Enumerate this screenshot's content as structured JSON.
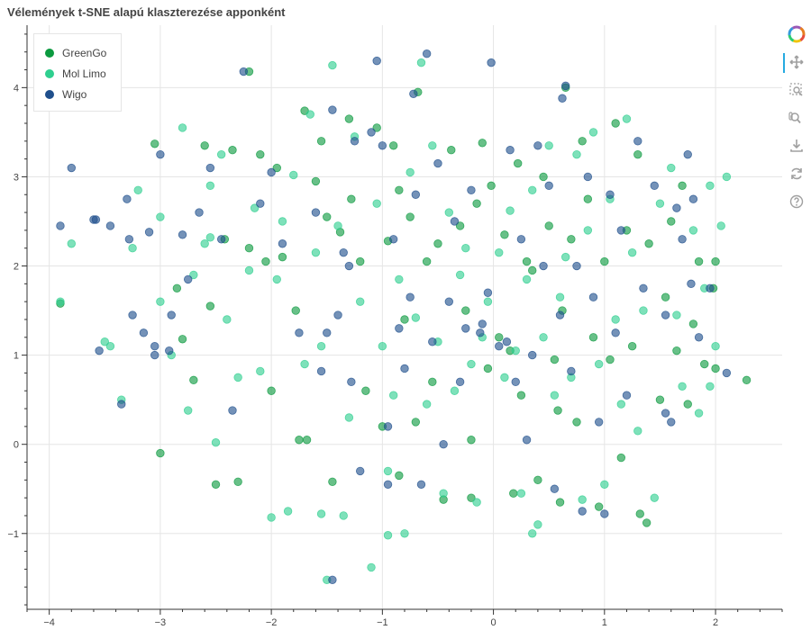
{
  "chart_data": {
    "type": "scatter",
    "title": "Vélemények t-SNE alapú klaszterezése apponként",
    "xlim": [
      -4.2,
      2.6
    ],
    "ylim": [
      -1.85,
      4.7
    ],
    "x_ticks": [
      -4,
      -3,
      -2,
      -1,
      0,
      1,
      2
    ],
    "y_ticks": [
      -1,
      0,
      1,
      2,
      3,
      4
    ],
    "x_tick_labels": [
      "−4",
      "−3",
      "−2",
      "−1",
      "0",
      "1",
      "2"
    ],
    "y_tick_labels": [
      "−1",
      "0",
      "1",
      "2",
      "3",
      "4"
    ],
    "grid": true,
    "legend_position": "top-left",
    "series": [
      {
        "name": "GreenGo",
        "color": "#0b9a3f",
        "points": [
          [
            -3.9,
            1.58
          ],
          [
            -3.05,
            3.37
          ],
          [
            -3.0,
            -0.1
          ],
          [
            -2.85,
            1.75
          ],
          [
            -2.8,
            1.18
          ],
          [
            -2.7,
            0.72
          ],
          [
            -2.6,
            3.35
          ],
          [
            -2.55,
            1.55
          ],
          [
            -2.5,
            -0.45
          ],
          [
            -2.42,
            2.3
          ],
          [
            -2.35,
            3.3
          ],
          [
            -2.2,
            2.2
          ],
          [
            -2.2,
            4.18
          ],
          [
            -2.1,
            3.25
          ],
          [
            -2.05,
            2.05
          ],
          [
            -2.0,
            0.6
          ],
          [
            -1.95,
            3.1
          ],
          [
            -1.9,
            2.1
          ],
          [
            -1.78,
            1.5
          ],
          [
            -1.7,
            3.74
          ],
          [
            -1.68,
            0.05
          ],
          [
            -1.6,
            2.95
          ],
          [
            -1.55,
            3.4
          ],
          [
            -1.5,
            2.55
          ],
          [
            -1.45,
            -0.42
          ],
          [
            -1.38,
            2.38
          ],
          [
            -1.3,
            3.65
          ],
          [
            -1.28,
            2.75
          ],
          [
            -1.2,
            2.05
          ],
          [
            -1.15,
            0.6
          ],
          [
            -1.05,
            3.55
          ],
          [
            -1.0,
            0.2
          ],
          [
            -0.95,
            2.28
          ],
          [
            -0.9,
            3.35
          ],
          [
            -0.85,
            2.85
          ],
          [
            -0.8,
            1.4
          ],
          [
            -0.75,
            2.55
          ],
          [
            -0.7,
            0.25
          ],
          [
            -0.68,
            3.95
          ],
          [
            -0.6,
            2.05
          ],
          [
            -0.55,
            0.7
          ],
          [
            -0.5,
            2.25
          ],
          [
            -0.45,
            -0.62
          ],
          [
            -0.38,
            3.3
          ],
          [
            -0.3,
            2.45
          ],
          [
            -0.25,
            1.5
          ],
          [
            -0.2,
            0.05
          ],
          [
            -0.15,
            2.7
          ],
          [
            -0.1,
            3.38
          ],
          [
            -0.05,
            0.85
          ],
          [
            -0.02,
            2.9
          ],
          [
            0.05,
            1.2
          ],
          [
            0.1,
            2.35
          ],
          [
            0.18,
            -0.55
          ],
          [
            0.22,
            3.15
          ],
          [
            0.25,
            0.55
          ],
          [
            0.3,
            2.05
          ],
          [
            0.35,
            1.95
          ],
          [
            0.4,
            -0.4
          ],
          [
            0.45,
            3.0
          ],
          [
            0.5,
            2.45
          ],
          [
            0.55,
            0.95
          ],
          [
            0.58,
            0.38
          ],
          [
            0.62,
            1.5
          ],
          [
            0.65,
            4.0
          ],
          [
            0.7,
            2.3
          ],
          [
            0.75,
            0.25
          ],
          [
            0.8,
            3.4
          ],
          [
            0.85,
            2.75
          ],
          [
            0.9,
            1.2
          ],
          [
            0.95,
            -0.7
          ],
          [
            1.0,
            2.05
          ],
          [
            1.05,
            0.95
          ],
          [
            1.1,
            3.6
          ],
          [
            1.15,
            -0.15
          ],
          [
            1.2,
            2.4
          ],
          [
            1.25,
            1.1
          ],
          [
            1.3,
            3.25
          ],
          [
            1.32,
            -0.78
          ],
          [
            1.38,
            -0.88
          ],
          [
            1.4,
            2.25
          ],
          [
            1.5,
            0.5
          ],
          [
            1.55,
            1.65
          ],
          [
            1.6,
            2.5
          ],
          [
            1.65,
            1.05
          ],
          [
            1.7,
            2.9
          ],
          [
            1.75,
            0.45
          ],
          [
            1.8,
            1.35
          ],
          [
            1.85,
            2.05
          ],
          [
            1.9,
            0.9
          ],
          [
            1.98,
            1.75
          ],
          [
            2.0,
            2.05
          ],
          [
            2.0,
            0.85
          ],
          [
            2.28,
            0.72
          ],
          [
            -0.85,
            -0.35
          ],
          [
            0.15,
            1.05
          ],
          [
            -1.75,
            0.05
          ],
          [
            -2.3,
            -0.42
          ],
          [
            -0.2,
            -0.6
          ],
          [
            0.6,
            -0.65
          ]
        ]
      },
      {
        "name": "Mol Limo",
        "color": "#2fcf8f",
        "points": [
          [
            -3.9,
            1.6
          ],
          [
            -3.8,
            2.25
          ],
          [
            -3.45,
            1.1
          ],
          [
            -3.35,
            0.5
          ],
          [
            -3.25,
            2.2
          ],
          [
            -3.2,
            2.85
          ],
          [
            -3.0,
            1.6
          ],
          [
            -3.0,
            2.55
          ],
          [
            -2.9,
            1.0
          ],
          [
            -2.8,
            3.55
          ],
          [
            -2.75,
            0.38
          ],
          [
            -2.7,
            1.9
          ],
          [
            -2.6,
            2.25
          ],
          [
            -2.55,
            2.9
          ],
          [
            -2.5,
            0.02
          ],
          [
            -2.45,
            3.25
          ],
          [
            -2.4,
            1.4
          ],
          [
            -2.3,
            0.75
          ],
          [
            -2.2,
            1.95
          ],
          [
            -2.15,
            2.65
          ],
          [
            -2.1,
            0.82
          ],
          [
            -2.0,
            -0.82
          ],
          [
            -1.95,
            1.85
          ],
          [
            -1.9,
            2.5
          ],
          [
            -1.85,
            -0.75
          ],
          [
            -1.8,
            3.02
          ],
          [
            -1.7,
            0.9
          ],
          [
            -1.65,
            3.7
          ],
          [
            -1.6,
            2.15
          ],
          [
            -1.55,
            1.1
          ],
          [
            -1.5,
            -1.52
          ],
          [
            -1.45,
            4.25
          ],
          [
            -1.4,
            2.45
          ],
          [
            -1.35,
            -0.8
          ],
          [
            -1.3,
            0.3
          ],
          [
            -1.25,
            3.45
          ],
          [
            -1.2,
            1.6
          ],
          [
            -1.1,
            -1.38
          ],
          [
            -1.05,
            2.7
          ],
          [
            -1.0,
            1.1
          ],
          [
            -0.95,
            -0.3
          ],
          [
            -0.9,
            0.55
          ],
          [
            -0.85,
            1.85
          ],
          [
            -0.8,
            -1.0
          ],
          [
            -0.75,
            3.05
          ],
          [
            -0.7,
            1.42
          ],
          [
            -0.65,
            4.28
          ],
          [
            -0.6,
            0.45
          ],
          [
            -0.55,
            3.35
          ],
          [
            -0.5,
            1.15
          ],
          [
            -0.45,
            -0.55
          ],
          [
            -0.4,
            2.6
          ],
          [
            -0.35,
            0.6
          ],
          [
            -0.3,
            1.9
          ],
          [
            -0.25,
            2.2
          ],
          [
            -0.2,
            0.9
          ],
          [
            -0.15,
            -0.65
          ],
          [
            -0.1,
            1.2
          ],
          [
            -0.05,
            1.6
          ],
          [
            0.05,
            2.15
          ],
          [
            0.1,
            0.75
          ],
          [
            0.15,
            2.62
          ],
          [
            0.2,
            1.05
          ],
          [
            0.25,
            -0.55
          ],
          [
            0.3,
            1.85
          ],
          [
            0.35,
            2.85
          ],
          [
            0.4,
            -0.9
          ],
          [
            0.45,
            1.2
          ],
          [
            0.5,
            3.35
          ],
          [
            0.55,
            0.55
          ],
          [
            0.6,
            1.65
          ],
          [
            0.65,
            2.1
          ],
          [
            0.7,
            0.75
          ],
          [
            0.75,
            3.25
          ],
          [
            0.8,
            -0.62
          ],
          [
            0.85,
            2.4
          ],
          [
            0.9,
            3.5
          ],
          [
            0.95,
            0.9
          ],
          [
            1.0,
            -0.45
          ],
          [
            1.05,
            2.75
          ],
          [
            1.1,
            1.4
          ],
          [
            1.15,
            0.45
          ],
          [
            1.2,
            3.65
          ],
          [
            1.25,
            2.15
          ],
          [
            1.3,
            0.15
          ],
          [
            1.35,
            1.5
          ],
          [
            1.45,
            -0.6
          ],
          [
            1.5,
            2.7
          ],
          [
            1.6,
            3.1
          ],
          [
            1.65,
            1.45
          ],
          [
            1.7,
            0.65
          ],
          [
            1.8,
            2.4
          ],
          [
            1.85,
            0.35
          ],
          [
            1.9,
            1.75
          ],
          [
            1.95,
            2.9
          ],
          [
            2.0,
            1.1
          ],
          [
            2.05,
            2.45
          ],
          [
            2.1,
            3.0
          ],
          [
            1.95,
            0.65
          ],
          [
            -1.55,
            -0.78
          ],
          [
            -0.95,
            -1.02
          ],
          [
            0.35,
            -1.0
          ],
          [
            -2.55,
            2.32
          ],
          [
            -3.5,
            1.15
          ]
        ]
      },
      {
        "name": "Wigo",
        "color": "#1f4f8c",
        "points": [
          [
            -3.9,
            2.45
          ],
          [
            -3.8,
            3.1
          ],
          [
            -3.6,
            2.52
          ],
          [
            -3.55,
            1.05
          ],
          [
            -3.45,
            2.45
          ],
          [
            -3.35,
            0.45
          ],
          [
            -3.3,
            2.75
          ],
          [
            -3.28,
            2.3
          ],
          [
            -3.25,
            1.45
          ],
          [
            -3.15,
            1.25
          ],
          [
            -3.1,
            2.38
          ],
          [
            -3.05,
            1.0
          ],
          [
            -3.0,
            3.25
          ],
          [
            -2.9,
            1.45
          ],
          [
            -2.8,
            2.35
          ],
          [
            -2.75,
            1.85
          ],
          [
            -2.65,
            2.6
          ],
          [
            -2.55,
            3.1
          ],
          [
            -2.45,
            2.3
          ],
          [
            -2.35,
            0.38
          ],
          [
            -2.25,
            4.18
          ],
          [
            -2.1,
            2.7
          ],
          [
            -2.0,
            3.05
          ],
          [
            -1.9,
            2.25
          ],
          [
            -1.75,
            1.25
          ],
          [
            -1.6,
            2.6
          ],
          [
            -1.55,
            0.82
          ],
          [
            -1.5,
            1.25
          ],
          [
            -1.45,
            3.75
          ],
          [
            -1.4,
            1.45
          ],
          [
            -1.35,
            2.15
          ],
          [
            -1.3,
            2.0
          ],
          [
            -1.28,
            0.7
          ],
          [
            -1.25,
            3.4
          ],
          [
            -1.2,
            -0.3
          ],
          [
            -1.1,
            3.5
          ],
          [
            -1.05,
            4.3
          ],
          [
            -1.0,
            3.35
          ],
          [
            -0.95,
            0.2
          ],
          [
            -0.9,
            2.3
          ],
          [
            -0.85,
            1.3
          ],
          [
            -0.8,
            0.85
          ],
          [
            -0.75,
            1.65
          ],
          [
            -0.7,
            2.8
          ],
          [
            -0.65,
            -0.45
          ],
          [
            -0.6,
            4.38
          ],
          [
            -0.55,
            1.15
          ],
          [
            -0.5,
            3.15
          ],
          [
            -0.45,
            0.0
          ],
          [
            -0.4,
            1.6
          ],
          [
            -0.35,
            2.5
          ],
          [
            -0.3,
            0.7
          ],
          [
            -0.25,
            1.3
          ],
          [
            -0.2,
            2.85
          ],
          [
            -0.1,
            1.35
          ],
          [
            -0.05,
            1.7
          ],
          [
            -0.02,
            4.28
          ],
          [
            0.05,
            1.1
          ],
          [
            0.15,
            3.3
          ],
          [
            0.2,
            0.7
          ],
          [
            0.25,
            2.3
          ],
          [
            0.3,
            0.05
          ],
          [
            0.35,
            1.0
          ],
          [
            0.4,
            3.35
          ],
          [
            0.45,
            2.0
          ],
          [
            0.5,
            2.9
          ],
          [
            0.55,
            -0.5
          ],
          [
            0.6,
            1.45
          ],
          [
            0.65,
            4.02
          ],
          [
            0.7,
            0.82
          ],
          [
            0.75,
            2.0
          ],
          [
            0.8,
            -0.75
          ],
          [
            0.85,
            3.0
          ],
          [
            0.9,
            1.65
          ],
          [
            0.95,
            0.25
          ],
          [
            1.0,
            -0.78
          ],
          [
            1.05,
            2.8
          ],
          [
            1.1,
            1.25
          ],
          [
            1.15,
            2.4
          ],
          [
            1.2,
            0.55
          ],
          [
            1.3,
            3.4
          ],
          [
            1.35,
            1.75
          ],
          [
            1.45,
            2.9
          ],
          [
            1.55,
            1.45
          ],
          [
            1.6,
            0.25
          ],
          [
            1.65,
            2.65
          ],
          [
            1.75,
            3.25
          ],
          [
            1.8,
            2.75
          ],
          [
            1.85,
            1.2
          ],
          [
            1.95,
            1.75
          ],
          [
            2.1,
            0.8
          ],
          [
            1.55,
            0.35
          ],
          [
            -3.58,
            2.52
          ],
          [
            -0.95,
            -0.45
          ],
          [
            -1.45,
            -1.52
          ],
          [
            0.62,
            3.88
          ],
          [
            -0.72,
            3.93
          ],
          [
            0.12,
            1.15
          ],
          [
            -0.12,
            1.25
          ],
          [
            -2.92,
            1.05
          ],
          [
            -3.05,
            1.1
          ],
          [
            1.78,
            1.8
          ],
          [
            1.7,
            2.3
          ]
        ]
      }
    ]
  },
  "legend": {
    "items": [
      {
        "label": "GreenGo",
        "color": "#0b9a3f"
      },
      {
        "label": "Mol Limo",
        "color": "#2fcf8f"
      },
      {
        "label": "Wigo",
        "color": "#1f4f8c"
      }
    ]
  },
  "toolbar": {
    "tools": [
      "bokeh-logo-icon",
      "pan-icon",
      "box-zoom-icon",
      "wheel-zoom-icon",
      "save-icon",
      "reset-icon",
      "help-icon"
    ]
  }
}
